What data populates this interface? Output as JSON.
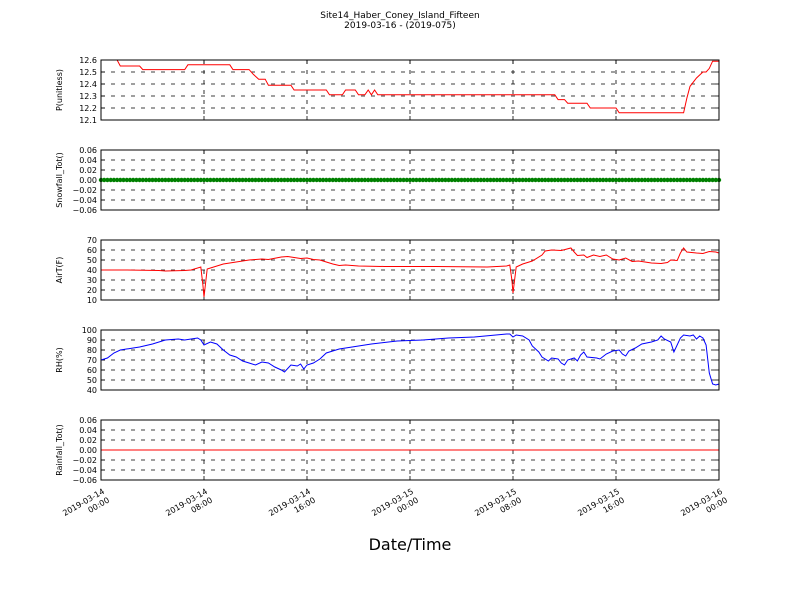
{
  "title": "Site14_Haber_Coney_Island_Fifteen",
  "subtitle": "2019-03-16 - (2019-075)",
  "xlabel": "Date/Time",
  "x_ticks": [
    {
      "value": "2019-03-14 00:00",
      "label": "2019-03-14\n00:00"
    },
    {
      "value": "2019-03-14 08:00",
      "label": "2019-03-14\n08:00"
    },
    {
      "value": "2019-03-14 16:00",
      "label": "2019-03-14\n16:00"
    },
    {
      "value": "2019-03-15 00:00",
      "label": "2019-03-15\n00:00"
    },
    {
      "value": "2019-03-15 08:00",
      "label": "2019-03-15\n08:00"
    },
    {
      "value": "2019-03-15 16:00",
      "label": "2019-03-15\n16:00"
    },
    {
      "value": "2019-03-16 00:00",
      "label": "2019-03-16\n00:00"
    }
  ],
  "colors": {
    "pressure": "#ff0000",
    "snowfall": "#008000",
    "airtemp": "#ff0000",
    "rh": "#0000ff",
    "rainfall": "#ff0000"
  },
  "chart_data": [
    {
      "type": "line",
      "ylabel": "P(unitless)",
      "ylim": [
        12.1,
        12.6
      ],
      "yticks": [
        "12.1",
        "12.2",
        "12.3",
        "12.4",
        "12.5",
        "12.6"
      ],
      "grid": true,
      "series": [
        {
          "points": [
            [
              "2019-03-14 00:00",
              12.6
            ],
            [
              "2019-03-14 01:15",
              12.6
            ],
            [
              "2019-03-14 01:30",
              12.55
            ],
            [
              "2019-03-14 03:00",
              12.55
            ],
            [
              "2019-03-14 03:15",
              12.52
            ],
            [
              "2019-03-14 06:30",
              12.52
            ],
            [
              "2019-03-14 06:45",
              12.56
            ],
            [
              "2019-03-14 10:00",
              12.56
            ],
            [
              "2019-03-14 10:15",
              12.52
            ],
            [
              "2019-03-14 11:30",
              12.52
            ],
            [
              "2019-03-14 11:50",
              12.48
            ],
            [
              "2019-03-14 12:15",
              12.44
            ],
            [
              "2019-03-14 12:45",
              12.44
            ],
            [
              "2019-03-14 13:00",
              12.39
            ],
            [
              "2019-03-14 14:45",
              12.39
            ],
            [
              "2019-03-14 15:00",
              12.35
            ],
            [
              "2019-03-14 17:30",
              12.35
            ],
            [
              "2019-03-14 17:45",
              12.31
            ],
            [
              "2019-03-14 18:45",
              12.31
            ],
            [
              "2019-03-14 19:00",
              12.35
            ],
            [
              "2019-03-14 19:45",
              12.35
            ],
            [
              "2019-03-14 20:00",
              12.31
            ],
            [
              "2019-03-14 20:30",
              12.31
            ],
            [
              "2019-03-14 20:45",
              12.35
            ],
            [
              "2019-03-14 21:00",
              12.31
            ],
            [
              "2019-03-14 21:15",
              12.35
            ],
            [
              "2019-03-14 21:30",
              12.31
            ],
            [
              "2019-03-15 00:00",
              12.31
            ],
            [
              "2019-03-15 04:00",
              12.31
            ],
            [
              "2019-03-15 08:00",
              12.31
            ],
            [
              "2019-03-15 11:15",
              12.31
            ],
            [
              "2019-03-15 11:30",
              12.27
            ],
            [
              "2019-03-15 12:00",
              12.27
            ],
            [
              "2019-03-15 12:15",
              12.24
            ],
            [
              "2019-03-15 13:45",
              12.24
            ],
            [
              "2019-03-15 14:00",
              12.2
            ],
            [
              "2019-03-15 16:00",
              12.2
            ],
            [
              "2019-03-15 16:15",
              12.16
            ],
            [
              "2019-03-15 21:15",
              12.16
            ],
            [
              "2019-03-15 21:30",
              12.28
            ],
            [
              "2019-03-15 21:45",
              12.38
            ],
            [
              "2019-03-15 22:15",
              12.45
            ],
            [
              "2019-03-15 22:45",
              12.5
            ],
            [
              "2019-03-15 23:00",
              12.5
            ],
            [
              "2019-03-15 23:15",
              12.53
            ],
            [
              "2019-03-15 23:30",
              12.59
            ],
            [
              "2019-03-16 00:00",
              12.59
            ]
          ]
        }
      ]
    },
    {
      "type": "line",
      "ylabel": "Snowfall_Tot()",
      "ylim": [
        -0.06,
        0.06
      ],
      "yticks": [
        "−0.06",
        "−0.04",
        "−0.02",
        "0.00",
        "0.02",
        "0.04",
        "0.06"
      ],
      "grid": true,
      "markers": true,
      "series": [
        {
          "start": "2019-03-14 00:00",
          "end": "2019-03-16 00:00",
          "interval_minutes": 15,
          "value": 0.0
        }
      ]
    },
    {
      "type": "line",
      "ylabel": "AirT(F)",
      "ylim": [
        10,
        70
      ],
      "yticks": [
        "10",
        "20",
        "30",
        "40",
        "50",
        "60",
        "70"
      ],
      "grid": true,
      "series": [
        {
          "points": [
            [
              "2019-03-14 00:00",
              40
            ],
            [
              "2019-03-14 02:00",
              40
            ],
            [
              "2019-03-14 04:30",
              39.5
            ],
            [
              "2019-03-14 05:00",
              39
            ],
            [
              "2019-03-14 06:30",
              39.5
            ],
            [
              "2019-03-14 07:00",
              40
            ],
            [
              "2019-03-14 07:45",
              43
            ],
            [
              "2019-03-14 07:55",
              25
            ],
            [
              "2019-03-14 08:00",
              13
            ],
            [
              "2019-03-14 08:15",
              41
            ],
            [
              "2019-03-14 09:00",
              44
            ],
            [
              "2019-03-14 09:30",
              46
            ],
            [
              "2019-03-14 10:30",
              48
            ],
            [
              "2019-03-14 11:30",
              50
            ],
            [
              "2019-03-14 12:30",
              51
            ],
            [
              "2019-03-14 13:00",
              50.5
            ],
            [
              "2019-03-14 14:00",
              53
            ],
            [
              "2019-03-14 14:30",
              53.5
            ],
            [
              "2019-03-14 15:00",
              52.5
            ],
            [
              "2019-03-14 15:30",
              51.5
            ],
            [
              "2019-03-14 16:00",
              52
            ],
            [
              "2019-03-14 16:30",
              50.5
            ],
            [
              "2019-03-14 17:00",
              50
            ],
            [
              "2019-03-14 17:30",
              48
            ],
            [
              "2019-03-14 18:00",
              46
            ],
            [
              "2019-03-14 18:30",
              44.5
            ],
            [
              "2019-03-14 19:00",
              45
            ],
            [
              "2019-03-14 20:00",
              44
            ],
            [
              "2019-03-14 22:00",
              43.5
            ],
            [
              "2019-03-15 02:00",
              43.5
            ],
            [
              "2019-03-15 06:00",
              43
            ],
            [
              "2019-03-15 07:30",
              44
            ],
            [
              "2019-03-15 07:45",
              45
            ],
            [
              "2019-03-15 07:55",
              30
            ],
            [
              "2019-03-15 08:00",
              17
            ],
            [
              "2019-03-15 08:15",
              43
            ],
            [
              "2019-03-15 08:45",
              46
            ],
            [
              "2019-03-15 09:30",
              49
            ],
            [
              "2019-03-15 10:15",
              55
            ],
            [
              "2019-03-15 10:30",
              59
            ],
            [
              "2019-03-15 11:00",
              60
            ],
            [
              "2019-03-15 11:45",
              59.5
            ],
            [
              "2019-03-15 12:30",
              62
            ],
            [
              "2019-03-15 12:45",
              58
            ],
            [
              "2019-03-15 13:00",
              54.5
            ],
            [
              "2019-03-15 13:30",
              55
            ],
            [
              "2019-03-15 13:45",
              52.5
            ],
            [
              "2019-03-15 14:15",
              55
            ],
            [
              "2019-03-15 14:45",
              53.5
            ],
            [
              "2019-03-15 15:15",
              55
            ],
            [
              "2019-03-15 15:45",
              51
            ],
            [
              "2019-03-15 16:15",
              50
            ],
            [
              "2019-03-15 16:45",
              52
            ],
            [
              "2019-03-15 17:15",
              48.5
            ],
            [
              "2019-03-15 17:45",
              49
            ],
            [
              "2019-03-15 18:15",
              48
            ],
            [
              "2019-03-15 18:45",
              47
            ],
            [
              "2019-03-15 19:30",
              46.5
            ],
            [
              "2019-03-15 20:00",
              47.5
            ],
            [
              "2019-03-15 20:15",
              50
            ],
            [
              "2019-03-15 20:45",
              49.5
            ],
            [
              "2019-03-15 21:00",
              57
            ],
            [
              "2019-03-15 21:15",
              62
            ],
            [
              "2019-03-15 21:30",
              58
            ],
            [
              "2019-03-15 22:15",
              57
            ],
            [
              "2019-03-15 22:45",
              56.5
            ],
            [
              "2019-03-15 23:15",
              58.5
            ],
            [
              "2019-03-15 23:45",
              58
            ],
            [
              "2019-03-16 00:00",
              57
            ]
          ]
        }
      ]
    },
    {
      "type": "line",
      "ylabel": "RH(%)",
      "ylim": [
        40,
        100
      ],
      "yticks": [
        "40",
        "50",
        "60",
        "70",
        "80",
        "90",
        "100"
      ],
      "grid": true,
      "series": [
        {
          "points": [
            [
              "2019-03-14 00:00",
              70
            ],
            [
              "2019-03-14 00:30",
              72
            ],
            [
              "2019-03-14 01:00",
              77
            ],
            [
              "2019-03-14 01:30",
              80
            ],
            [
              "2019-03-14 02:30",
              82
            ],
            [
              "2019-03-14 03:00",
              83
            ],
            [
              "2019-03-14 04:00",
              86
            ],
            [
              "2019-03-14 05:00",
              90
            ],
            [
              "2019-03-14 06:00",
              91
            ],
            [
              "2019-03-14 06:30",
              90
            ],
            [
              "2019-03-14 07:00",
              91
            ],
            [
              "2019-03-14 07:30",
              92
            ],
            [
              "2019-03-14 07:45",
              90
            ],
            [
              "2019-03-14 08:00",
              85
            ],
            [
              "2019-03-14 08:30",
              88
            ],
            [
              "2019-03-14 09:00",
              86
            ],
            [
              "2019-03-14 09:30",
              80
            ],
            [
              "2019-03-14 10:00",
              75
            ],
            [
              "2019-03-14 10:30",
              73
            ],
            [
              "2019-03-14 11:00",
              69
            ],
            [
              "2019-03-14 11:30",
              67
            ],
            [
              "2019-03-14 12:00",
              65
            ],
            [
              "2019-03-14 12:30",
              68
            ],
            [
              "2019-03-14 13:00",
              67
            ],
            [
              "2019-03-14 13:30",
              63
            ],
            [
              "2019-03-14 14:00",
              60
            ],
            [
              "2019-03-14 14:15",
              58
            ],
            [
              "2019-03-14 14:45",
              65
            ],
            [
              "2019-03-14 15:15",
              64
            ],
            [
              "2019-03-14 15:30",
              66
            ],
            [
              "2019-03-14 15:45",
              61
            ],
            [
              "2019-03-14 16:00",
              65
            ],
            [
              "2019-03-14 16:30",
              67
            ],
            [
              "2019-03-14 17:00",
              71
            ],
            [
              "2019-03-14 17:30",
              77
            ],
            [
              "2019-03-14 18:30",
              81
            ],
            [
              "2019-03-14 19:30",
              83
            ],
            [
              "2019-03-14 21:00",
              86
            ],
            [
              "2019-03-14 23:00",
              89
            ],
            [
              "2019-03-15 01:00",
              90
            ],
            [
              "2019-03-15 03:00",
              92
            ],
            [
              "2019-03-15 05:00",
              93
            ],
            [
              "2019-03-15 07:30",
              96
            ],
            [
              "2019-03-15 07:45",
              96
            ],
            [
              "2019-03-15 08:00",
              93
            ],
            [
              "2019-03-15 08:15",
              95
            ],
            [
              "2019-03-15 08:45",
              94
            ],
            [
              "2019-03-15 09:15",
              90
            ],
            [
              "2019-03-15 09:30",
              84
            ],
            [
              "2019-03-15 10:00",
              78
            ],
            [
              "2019-03-15 10:15",
              73
            ],
            [
              "2019-03-15 10:45",
              69
            ],
            [
              "2019-03-15 11:00",
              72
            ],
            [
              "2019-03-15 11:30",
              71
            ],
            [
              "2019-03-15 11:45",
              67
            ],
            [
              "2019-03-15 12:00",
              65
            ],
            [
              "2019-03-15 12:15",
              70
            ],
            [
              "2019-03-15 12:45",
              72
            ],
            [
              "2019-03-15 13:00",
              69
            ],
            [
              "2019-03-15 13:15",
              75
            ],
            [
              "2019-03-15 13:30",
              78
            ],
            [
              "2019-03-15 13:45",
              73
            ],
            [
              "2019-03-15 14:30",
              72
            ],
            [
              "2019-03-15 14:45",
              71
            ],
            [
              "2019-03-15 15:15",
              76
            ],
            [
              "2019-03-15 15:45",
              79
            ],
            [
              "2019-03-15 16:15",
              80
            ],
            [
              "2019-03-15 16:30",
              76
            ],
            [
              "2019-03-15 16:45",
              74
            ],
            [
              "2019-03-15 17:00",
              79
            ],
            [
              "2019-03-15 17:30",
              82
            ],
            [
              "2019-03-15 18:00",
              86
            ],
            [
              "2019-03-15 18:45",
              88
            ],
            [
              "2019-03-15 19:15",
              90
            ],
            [
              "2019-03-15 19:30",
              94
            ],
            [
              "2019-03-15 19:45",
              91
            ],
            [
              "2019-03-15 20:15",
              88
            ],
            [
              "2019-03-15 20:30",
              78
            ],
            [
              "2019-03-15 21:00",
              92
            ],
            [
              "2019-03-15 21:15",
              95
            ],
            [
              "2019-03-15 21:45",
              94
            ],
            [
              "2019-03-15 22:00",
              95
            ],
            [
              "2019-03-15 22:15",
              91
            ],
            [
              "2019-03-15 22:30",
              94
            ],
            [
              "2019-03-15 22:45",
              92
            ],
            [
              "2019-03-15 23:00",
              85
            ],
            [
              "2019-03-15 23:15",
              57
            ],
            [
              "2019-03-15 23:30",
              46
            ],
            [
              "2019-03-15 23:45",
              45
            ],
            [
              "2019-03-16 00:00",
              46
            ]
          ]
        }
      ]
    },
    {
      "type": "line",
      "ylabel": "Rainfall_Tot()",
      "ylim": [
        -0.06,
        0.06
      ],
      "yticks": [
        "−0.06",
        "−0.04",
        "−0.02",
        "0.00",
        "0.02",
        "0.04",
        "0.06"
      ],
      "grid": true,
      "series": [
        {
          "points": [
            [
              "2019-03-14 00:00",
              0.0
            ],
            [
              "2019-03-16 00:00",
              0.0
            ]
          ]
        }
      ]
    }
  ]
}
